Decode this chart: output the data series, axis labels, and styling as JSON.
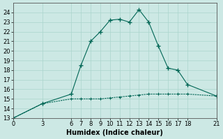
{
  "xlabel": "Humidex (Indice chaleur)",
  "bg_color": "#cce8e4",
  "line_color": "#006655",
  "grid_color": "#aad4cc",
  "upper_x": [
    0,
    3,
    6,
    7,
    8,
    9,
    10,
    11,
    12,
    13,
    14,
    15,
    16,
    17,
    18,
    21
  ],
  "upper_y": [
    13.0,
    14.5,
    15.5,
    18.5,
    21.0,
    22.0,
    23.2,
    23.3,
    23.0,
    24.3,
    23.0,
    20.5,
    18.2,
    18.0,
    16.5,
    15.3
  ],
  "lower_x": [
    0,
    3,
    6,
    7,
    8,
    9,
    10,
    11,
    12,
    13,
    14,
    15,
    16,
    17,
    18,
    21
  ],
  "lower_y": [
    13.0,
    14.5,
    15.0,
    15.0,
    15.0,
    15.0,
    15.1,
    15.2,
    15.3,
    15.4,
    15.5,
    15.5,
    15.5,
    15.5,
    15.5,
    15.3
  ],
  "xlim": [
    0,
    21
  ],
  "ylim": [
    13,
    25
  ],
  "yticks": [
    13,
    14,
    15,
    16,
    17,
    18,
    19,
    20,
    21,
    22,
    23,
    24
  ],
  "xticks": [
    0,
    3,
    6,
    7,
    8,
    9,
    10,
    11,
    12,
    13,
    14,
    15,
    16,
    17,
    18,
    21
  ],
  "tick_labelsize": 6.0,
  "xlabel_fontsize": 7.0
}
